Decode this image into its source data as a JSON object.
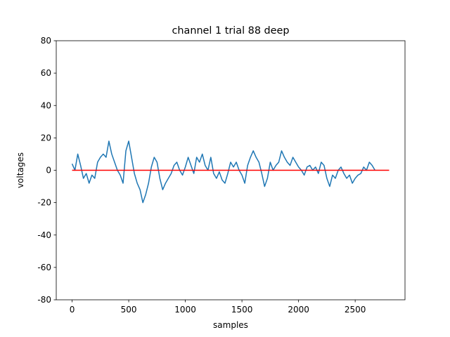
{
  "chart_data": {
    "type": "line",
    "title": "channel 1 trial 88 deep",
    "x_label": "samples",
    "y_label": "voltages",
    "series": [
      {
        "color": "#1f77b4",
        "x": [
          0,
          25,
          50,
          75,
          100,
          125,
          150,
          175,
          200,
          225,
          250,
          275,
          300,
          325,
          350,
          375,
          400,
          425,
          450,
          475,
          500,
          525,
          550,
          575,
          600,
          625,
          650,
          675,
          700,
          725,
          750,
          775,
          800,
          825,
          850,
          875,
          900,
          925,
          950,
          975,
          1000,
          1025,
          1050,
          1075,
          1100,
          1125,
          1150,
          1175,
          1200,
          1225,
          1250,
          1275,
          1300,
          1325,
          1350,
          1375,
          1400,
          1425,
          1450,
          1475,
          1500,
          1525,
          1550,
          1575,
          1600,
          1625,
          1650,
          1675,
          1700,
          1725,
          1750,
          1775,
          1800,
          1825,
          1850,
          1875,
          1900,
          1925,
          1950,
          1975,
          2000,
          2025,
          2050,
          2075,
          2100,
          2125,
          2150,
          2175,
          2200,
          2225,
          2250,
          2275,
          2300,
          2325,
          2350,
          2375,
          2400,
          2425,
          2450,
          2475,
          2500,
          2525,
          2550,
          2575,
          2600,
          2625,
          2650,
          2675
        ],
        "values": [
          4,
          0,
          10,
          3,
          -5,
          -2,
          -8,
          -3,
          -5,
          5,
          8,
          10,
          8,
          18,
          10,
          5,
          0,
          -3,
          -8,
          12,
          18,
          8,
          -2,
          -8,
          -12,
          -20,
          -15,
          -8,
          2,
          8,
          5,
          -5,
          -12,
          -8,
          -5,
          -2,
          3,
          5,
          0,
          -3,
          2,
          8,
          3,
          -2,
          8,
          5,
          10,
          3,
          0,
          8,
          -2,
          -5,
          -1,
          -6,
          -8,
          -2,
          5,
          2,
          5,
          0,
          -3,
          -8,
          3,
          8,
          12,
          8,
          5,
          -2,
          -10,
          -5,
          5,
          0,
          3,
          5,
          12,
          8,
          5,
          3,
          8,
          5,
          2,
          0,
          -3,
          2,
          3,
          0,
          2,
          -2,
          5,
          3,
          -5,
          -10,
          -3,
          -5,
          0,
          2,
          -2,
          -5,
          -3,
          -8,
          -5,
          -3,
          -2,
          2,
          0,
          5,
          3,
          0
        ]
      },
      {
        "color": "#ff0000",
        "x": [
          0,
          2800
        ],
        "values": [
          0,
          0
        ]
      }
    ],
    "xlim": [
      -140,
      2940
    ],
    "xticks": [
      0,
      500,
      1000,
      1500,
      2000,
      2500
    ],
    "ylim": [
      -80,
      80
    ],
    "yticks": [
      -80,
      -60,
      -40,
      -20,
      0,
      20,
      40,
      60,
      80
    ],
    "grid": false
  }
}
